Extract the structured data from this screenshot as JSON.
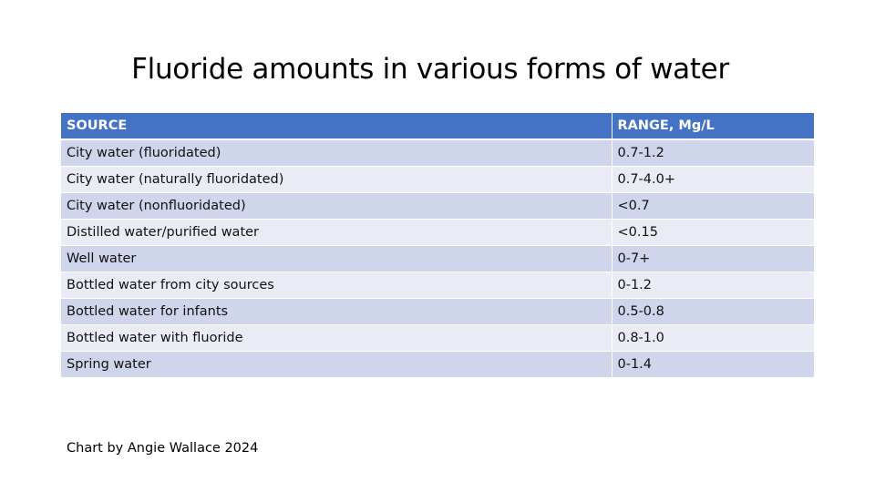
{
  "title": "Fluoride amounts in various forms of water",
  "table": {
    "headers": [
      "SOURCE",
      "RANGE, Mg/L"
    ],
    "rows": [
      [
        "City water (fluoridated)",
        "0.7-1.2"
      ],
      [
        "City water (naturally fluoridated)",
        "0.7-4.0+"
      ],
      [
        "City water (nonfluoridated)",
        "<0.7"
      ],
      [
        "Distilled water/purified water",
        "<0.15"
      ],
      [
        "Well water",
        "0-7+"
      ],
      [
        "Bottled water from city sources",
        "0-1.2"
      ],
      [
        "Bottled water for infants",
        "0.5-0.8"
      ],
      [
        "Bottled water with fluoride",
        "0.8-1.0"
      ],
      [
        "Spring water",
        "0-1.4"
      ]
    ]
  },
  "credit": "Chart by Angie Wallace 2024",
  "colors": {
    "header": "#4472c4",
    "row_odd": "#cfd5ea",
    "row_even": "#e9ebf5"
  }
}
